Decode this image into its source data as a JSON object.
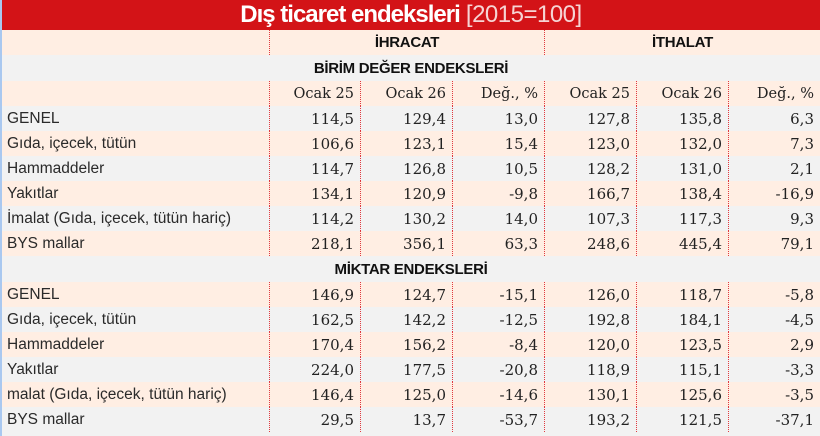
{
  "title": {
    "main": "Dış ticaret endeksleri",
    "sub": "[2015=100]"
  },
  "groups": {
    "left_blank": "",
    "export": "İHRACAT",
    "import": "İTHALAT"
  },
  "colors": {
    "title_bg": "#d31317",
    "peach_row": "#ffeee3",
    "grey_row": "#f2f2f2",
    "divider": "#e0393e"
  },
  "sections": [
    {
      "title": "BİRİM DEĞER ENDEKSLERİ",
      "columns": [
        "",
        "Ocak 25",
        "Ocak 26",
        "Değ., %",
        "Ocak 25",
        "Ocak 26",
        "Değ., %"
      ],
      "rows": [
        {
          "label": "GENEL",
          "exp_jan25": "114,5",
          "exp_jan26": "129,4",
          "exp_chg": "13,0",
          "imp_jan25": "127,8",
          "imp_jan26": "135,8",
          "imp_chg": "6,3"
        },
        {
          "label": "Gıda, içecek, tütün",
          "exp_jan25": "106,6",
          "exp_jan26": "123,1",
          "exp_chg": "15,4",
          "imp_jan25": "123,0",
          "imp_jan26": "132,0",
          "imp_chg": "7,3"
        },
        {
          "label": "Hammaddeler",
          "exp_jan25": "114,7",
          "exp_jan26": "126,8",
          "exp_chg": "10,5",
          "imp_jan25": "128,2",
          "imp_jan26": "131,0",
          "imp_chg": "2,1"
        },
        {
          "label": "Yakıtlar",
          "exp_jan25": "134,1",
          "exp_jan26": "120,9",
          "exp_chg": "-9,8",
          "imp_jan25": "166,7",
          "imp_jan26": "138,4",
          "imp_chg": "-16,9"
        },
        {
          "label": "İmalat (Gıda, içecek, tütün hariç)",
          "exp_jan25": "114,2",
          "exp_jan26": "130,2",
          "exp_chg": "14,0",
          "imp_jan25": "107,3",
          "imp_jan26": "117,3",
          "imp_chg": "9,3"
        },
        {
          "label": "BYS mallar",
          "exp_jan25": "218,1",
          "exp_jan26": "356,1",
          "exp_chg": "63,3",
          "imp_jan25": "248,6",
          "imp_jan26": "445,4",
          "imp_chg": "79,1"
        }
      ]
    },
    {
      "title": "MİKTAR ENDEKSLERİ",
      "rows": [
        {
          "label": "GENEL",
          "exp_jan25": "146,9",
          "exp_jan26": "124,7",
          "exp_chg": "-15,1",
          "imp_jan25": "126,0",
          "imp_jan26": "118,7",
          "imp_chg": "-5,8"
        },
        {
          "label": "Gıda, içecek, tütün",
          "exp_jan25": "162,5",
          "exp_jan26": "142,2",
          "exp_chg": "-12,5",
          "imp_jan25": "192,8",
          "imp_jan26": "184,1",
          "imp_chg": "-4,5"
        },
        {
          "label": "Hammaddeler",
          "exp_jan25": "170,4",
          "exp_jan26": "156,2",
          "exp_chg": "-8,4",
          "imp_jan25": "120,0",
          "imp_jan26": "123,5",
          "imp_chg": "2,9"
        },
        {
          "label": "Yakıtlar",
          "exp_jan25": "224,0",
          "exp_jan26": "177,5",
          "exp_chg": "-20,8",
          "imp_jan25": "118,9",
          "imp_jan26": "115,1",
          "imp_chg": "-3,3"
        },
        {
          "label": "malat (Gıda, içecek, tütün hariç)",
          "exp_jan25": "146,4",
          "exp_jan26": "125,0",
          "exp_chg": "-14,6",
          "imp_jan25": "130,1",
          "imp_jan26": "125,6",
          "imp_chg": "-3,5"
        },
        {
          "label": "BYS mallar",
          "exp_jan25": "29,5",
          "exp_jan26": "13,7",
          "exp_chg": "-53,7",
          "imp_jan25": "193,2",
          "imp_jan26": "121,5",
          "imp_chg": "-37,1"
        }
      ]
    }
  ]
}
